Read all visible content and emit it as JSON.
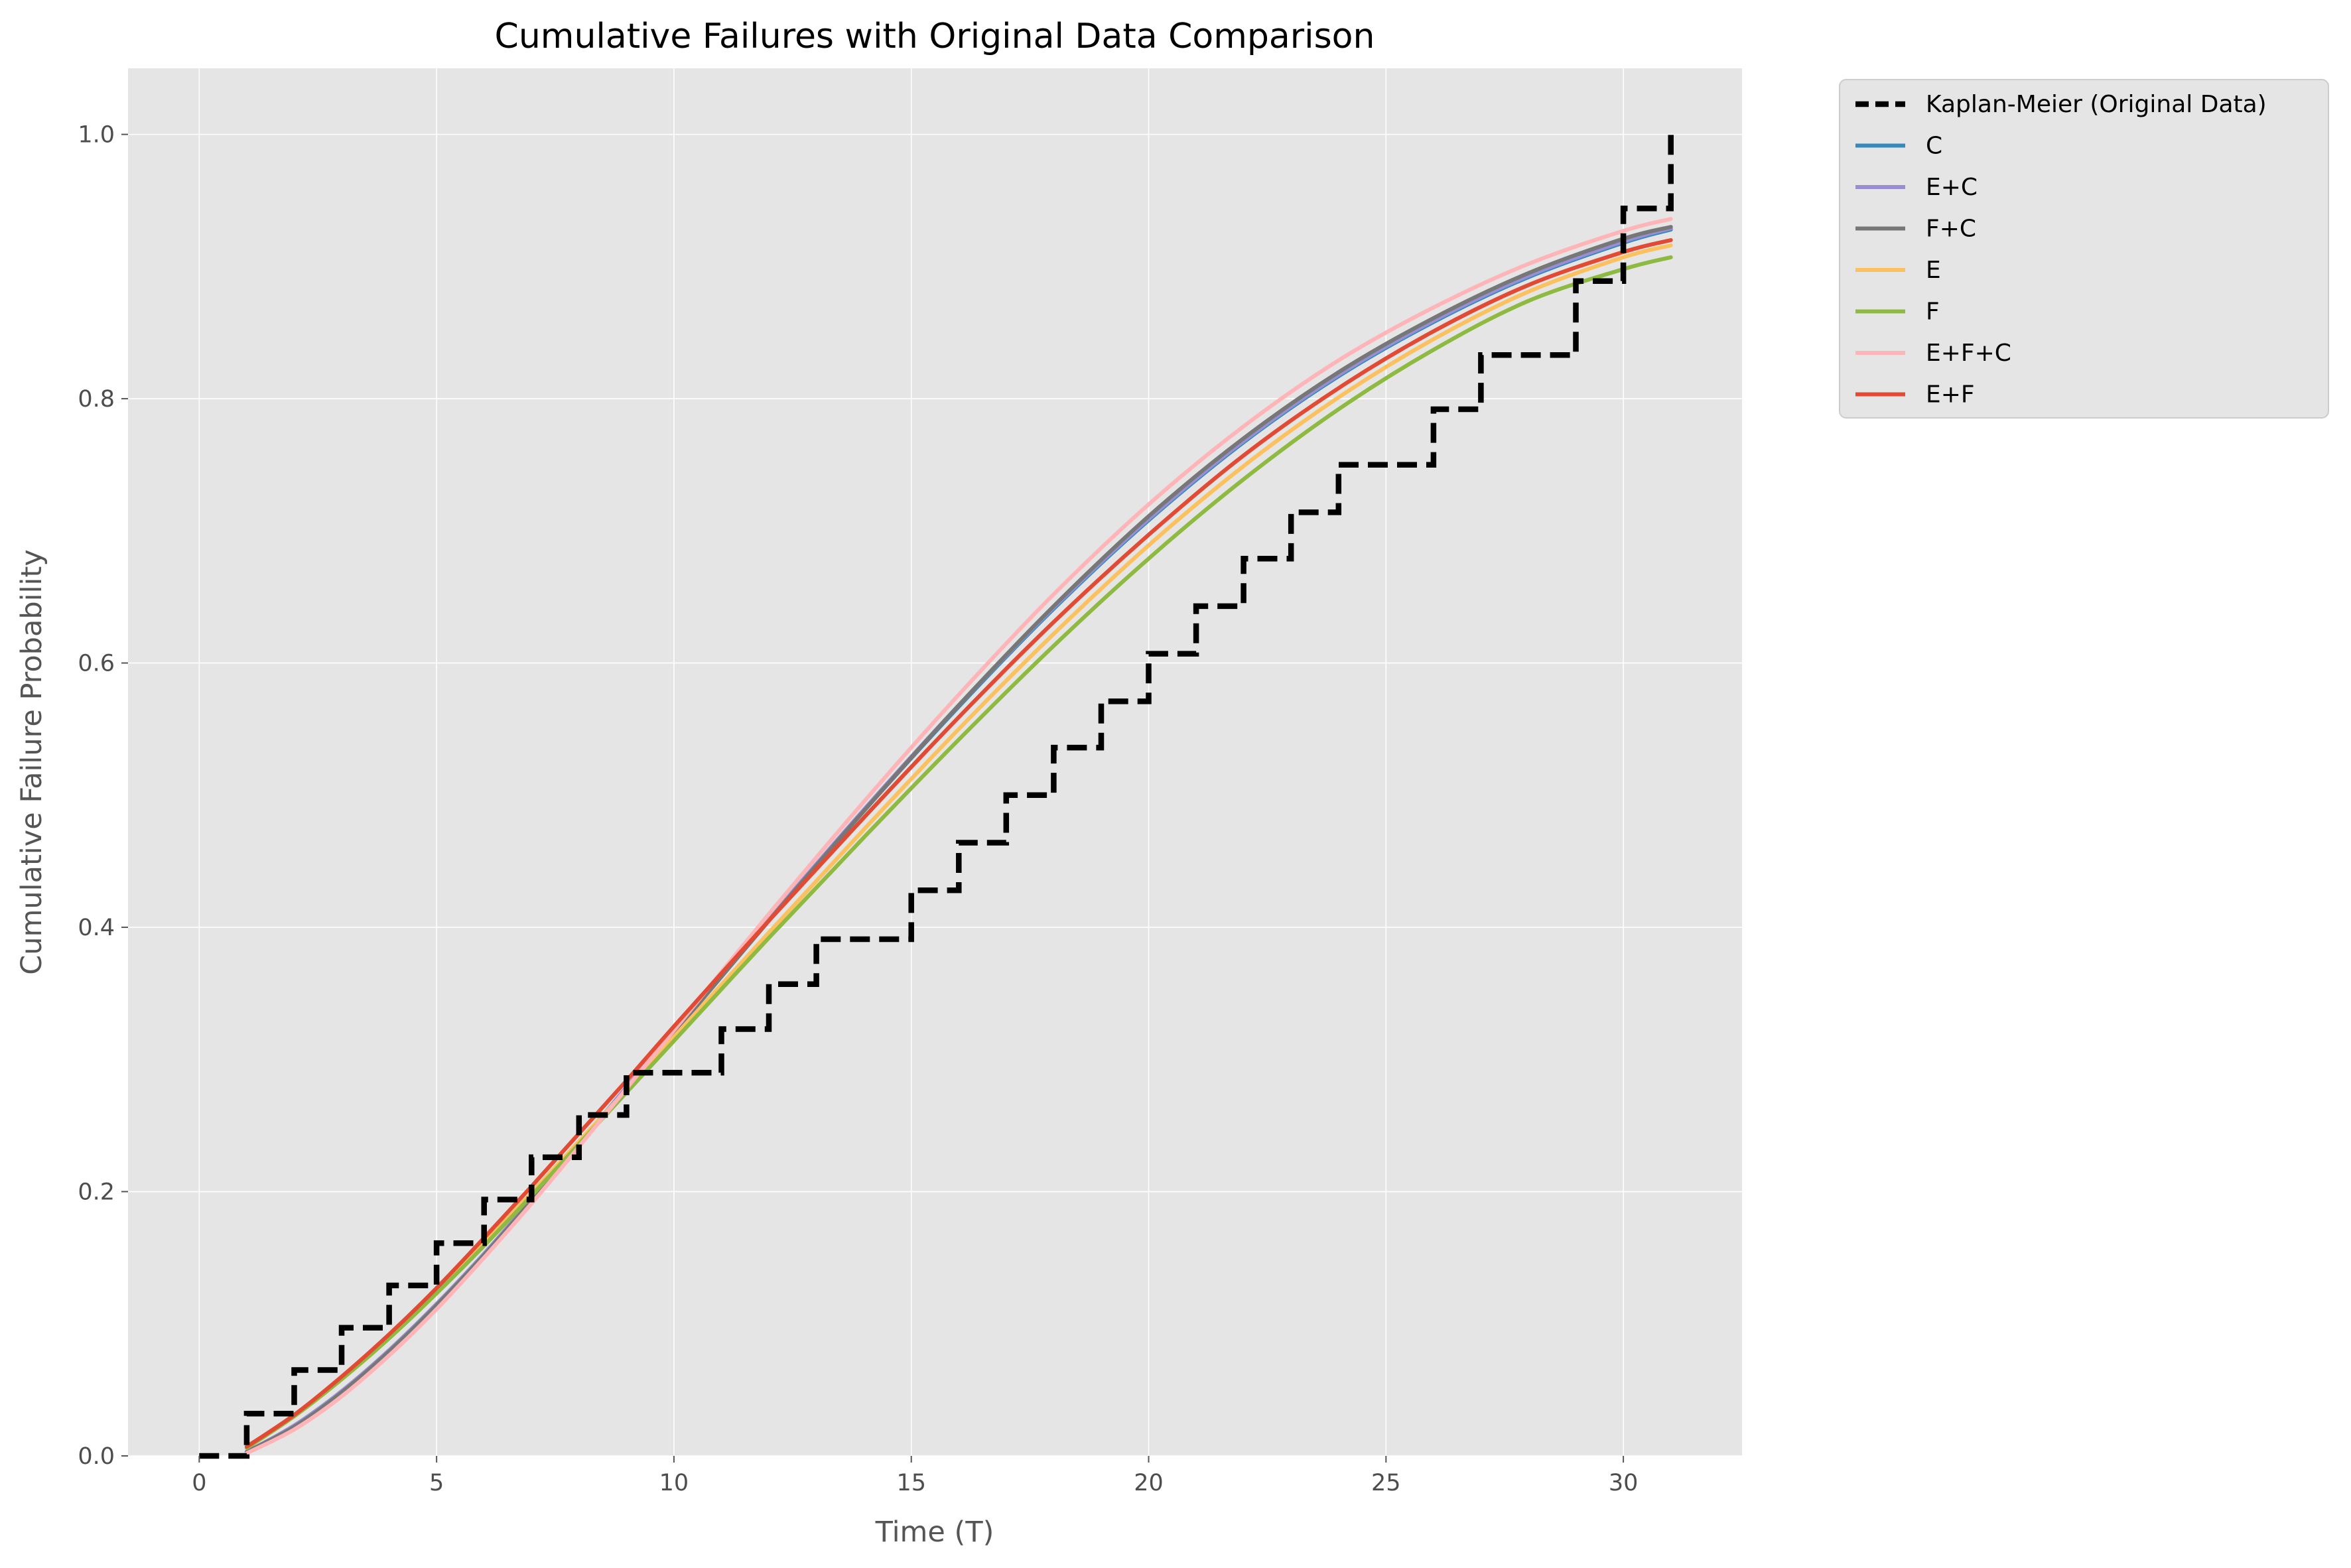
{
  "chart_data": {
    "type": "line",
    "title": "Cumulative Failures with Original Data Comparison",
    "xlabel": "Time (T)",
    "ylabel": "Cumulative Failure Probability",
    "xlim": [
      -1.5,
      32.5
    ],
    "ylim": [
      0.0,
      1.05
    ],
    "xticks": [
      0,
      5,
      10,
      15,
      20,
      25,
      30
    ],
    "yticks": [
      0.0,
      0.2,
      0.4,
      0.6,
      0.8,
      1.0
    ],
    "xtick_labels": [
      "0",
      "5",
      "10",
      "15",
      "20",
      "25",
      "30"
    ],
    "ytick_labels": [
      "0.0",
      "0.2",
      "0.4",
      "0.6",
      "0.8",
      "1.0"
    ],
    "grid": true,
    "legend_position": "outside-top-right",
    "kaplan_meier": {
      "name": "Kaplan-Meier (Original Data)",
      "color": "#000000",
      "style": "dashed-step",
      "x": [
        0,
        1,
        2,
        3,
        4,
        5,
        6,
        7,
        8,
        9,
        11,
        12,
        13,
        15,
        16,
        17,
        18,
        19,
        20,
        21,
        22,
        23,
        24,
        26,
        27,
        29,
        30,
        31
      ],
      "y": [
        0.0,
        0.032,
        0.065,
        0.097,
        0.129,
        0.161,
        0.194,
        0.226,
        0.258,
        0.29,
        0.323,
        0.357,
        0.391,
        0.428,
        0.464,
        0.5,
        0.536,
        0.571,
        0.607,
        0.643,
        0.679,
        0.714,
        0.75,
        0.792,
        0.833,
        0.889,
        0.944,
        1.0
      ]
    },
    "series": [
      {
        "name": "C",
        "color": "#348ABD",
        "x": [
          1,
          2,
          3,
          4,
          5,
          6,
          7,
          8,
          9,
          10,
          12,
          14,
          16,
          18,
          20,
          22,
          24,
          26,
          28,
          30,
          31
        ],
        "y": [
          0.003,
          0.022,
          0.048,
          0.079,
          0.114,
          0.152,
          0.193,
          0.235,
          0.278,
          0.32,
          0.405,
          0.488,
          0.567,
          0.641,
          0.708,
          0.767,
          0.817,
          0.858,
          0.892,
          0.918,
          0.928
        ]
      },
      {
        "name": "E+C",
        "color": "#988ED5",
        "x": [
          1,
          2,
          3,
          4,
          5,
          6,
          7,
          8,
          9,
          10,
          12,
          14,
          16,
          18,
          20,
          22,
          24,
          26,
          28,
          30,
          31
        ],
        "y": [
          0.003,
          0.023,
          0.049,
          0.08,
          0.115,
          0.153,
          0.194,
          0.236,
          0.279,
          0.321,
          0.406,
          0.489,
          0.568,
          0.642,
          0.709,
          0.768,
          0.818,
          0.859,
          0.893,
          0.919,
          0.929
        ]
      },
      {
        "name": "F+C",
        "color": "#777777",
        "x": [
          1,
          2,
          3,
          4,
          5,
          6,
          7,
          8,
          9,
          10,
          12,
          14,
          16,
          18,
          20,
          22,
          24,
          26,
          28,
          30,
          31
        ],
        "y": [
          0.003,
          0.022,
          0.048,
          0.079,
          0.114,
          0.152,
          0.193,
          0.235,
          0.278,
          0.32,
          0.405,
          0.488,
          0.568,
          0.643,
          0.711,
          0.77,
          0.82,
          0.861,
          0.895,
          0.921,
          0.93
        ]
      },
      {
        "name": "E",
        "color": "#FBC15E",
        "x": [
          1,
          2,
          3,
          4,
          5,
          6,
          7,
          8,
          9,
          10,
          12,
          14,
          16,
          18,
          20,
          22,
          24,
          26,
          28,
          30,
          31
        ],
        "y": [
          0.006,
          0.03,
          0.058,
          0.09,
          0.124,
          0.161,
          0.199,
          0.238,
          0.277,
          0.317,
          0.396,
          0.474,
          0.55,
          0.622,
          0.689,
          0.749,
          0.801,
          0.845,
          0.881,
          0.907,
          0.916
        ]
      },
      {
        "name": "F",
        "color": "#8EBA42",
        "x": [
          1,
          2,
          3,
          4,
          5,
          6,
          7,
          8,
          9,
          10,
          12,
          14,
          16,
          18,
          20,
          22,
          24,
          26,
          28,
          30,
          31
        ],
        "y": [
          0.006,
          0.03,
          0.058,
          0.089,
          0.123,
          0.159,
          0.197,
          0.236,
          0.275,
          0.314,
          0.392,
          0.468,
          0.542,
          0.613,
          0.679,
          0.739,
          0.792,
          0.837,
          0.874,
          0.898,
          0.907
        ]
      },
      {
        "name": "E+F+C",
        "color": "#FFB5B8",
        "x": [
          1,
          2,
          3,
          4,
          5,
          6,
          7,
          8,
          9,
          10,
          12,
          14,
          16,
          18,
          20,
          22,
          24,
          26,
          28,
          30,
          31
        ],
        "y": [
          0.002,
          0.02,
          0.045,
          0.076,
          0.111,
          0.15,
          0.191,
          0.234,
          0.278,
          0.322,
          0.41,
          0.495,
          0.576,
          0.652,
          0.72,
          0.779,
          0.829,
          0.869,
          0.902,
          0.927,
          0.936
        ]
      },
      {
        "name": "E+F",
        "color": "#E24A33",
        "x": [
          1,
          2,
          3,
          4,
          5,
          6,
          7,
          8,
          9,
          10,
          12,
          14,
          16,
          18,
          20,
          22,
          24,
          26,
          28,
          30,
          31
        ],
        "y": [
          0.007,
          0.031,
          0.06,
          0.092,
          0.127,
          0.165,
          0.204,
          0.244,
          0.284,
          0.325,
          0.405,
          0.483,
          0.559,
          0.631,
          0.697,
          0.757,
          0.808,
          0.851,
          0.886,
          0.911,
          0.92
        ]
      }
    ]
  }
}
